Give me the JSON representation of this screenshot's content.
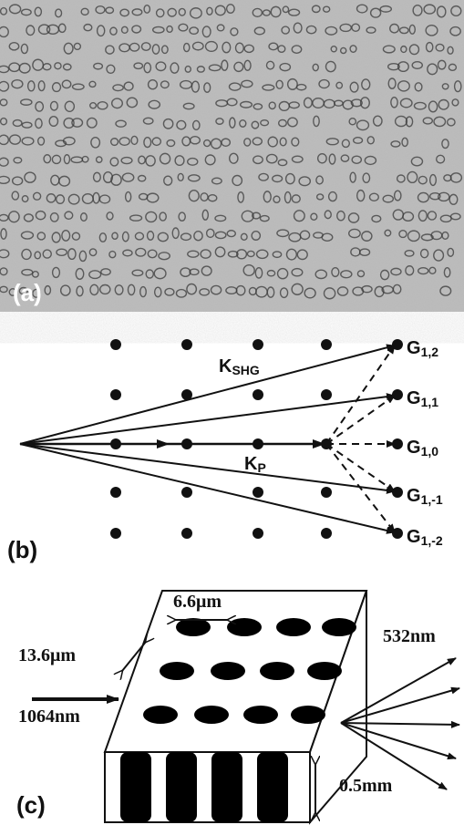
{
  "panels": {
    "a": {
      "label": "(a)"
    },
    "b": {
      "label": "(b)",
      "k_shg": {
        "main": "K",
        "sub": "SHG"
      },
      "k_p": {
        "main": "K",
        "sub": "P"
      },
      "g_labels": [
        {
          "main": "G",
          "sub": "1,2"
        },
        {
          "main": "G",
          "sub": "1,1"
        },
        {
          "main": "G",
          "sub": "1,0"
        },
        {
          "main": "G",
          "sub": "1,-1"
        },
        {
          "main": "G",
          "sub": "1,-2"
        }
      ]
    },
    "c": {
      "label": "(c)",
      "period_x": "6.6μm",
      "period_y": "13.6μm",
      "input": "1064nm",
      "output": "532nm",
      "thickness": "0.5mm"
    }
  }
}
